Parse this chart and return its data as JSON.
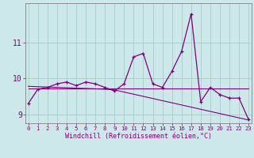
{
  "xlabel": "Windchill (Refroidissement éolien,°C)",
  "x_values": [
    0,
    1,
    2,
    3,
    4,
    5,
    6,
    7,
    8,
    9,
    10,
    11,
    12,
    13,
    14,
    15,
    16,
    17,
    18,
    19,
    20,
    21,
    22,
    23
  ],
  "y_main": [
    9.3,
    9.7,
    9.75,
    9.85,
    9.9,
    9.8,
    9.9,
    9.85,
    9.75,
    9.65,
    9.85,
    10.6,
    10.7,
    9.85,
    9.75,
    10.2,
    10.75,
    11.8,
    9.35,
    9.75,
    9.55,
    9.45,
    9.45,
    8.85
  ],
  "y_trend1": [
    9.72,
    9.72,
    9.72,
    9.72,
    9.72,
    9.72,
    9.72,
    9.72,
    9.72,
    9.72,
    9.72,
    9.72,
    9.72,
    9.72,
    9.72,
    9.72,
    9.72,
    9.72,
    9.72,
    9.72,
    9.72,
    9.72,
    9.72,
    9.72
  ],
  "y_trend2": [
    9.78,
    9.77,
    9.76,
    9.75,
    9.74,
    9.73,
    9.72,
    9.71,
    9.7,
    9.68,
    9.62,
    9.56,
    9.5,
    9.44,
    9.38,
    9.32,
    9.26,
    9.2,
    9.14,
    9.08,
    9.02,
    8.96,
    8.9,
    8.84
  ],
  "ylim": [
    8.75,
    12.1
  ],
  "yticks": [
    9,
    10,
    11
  ],
  "xlim": [
    -0.3,
    23.3
  ],
  "line_color": "#800080",
  "bg_color": "#cce8e8",
  "grid_color": "#aad0d0",
  "tick_label_color": "#800080",
  "axis_color": "#808080",
  "xlabel_fontsize": 6.0,
  "ytick_fontsize": 7.0,
  "xtick_fontsize": 5.2
}
